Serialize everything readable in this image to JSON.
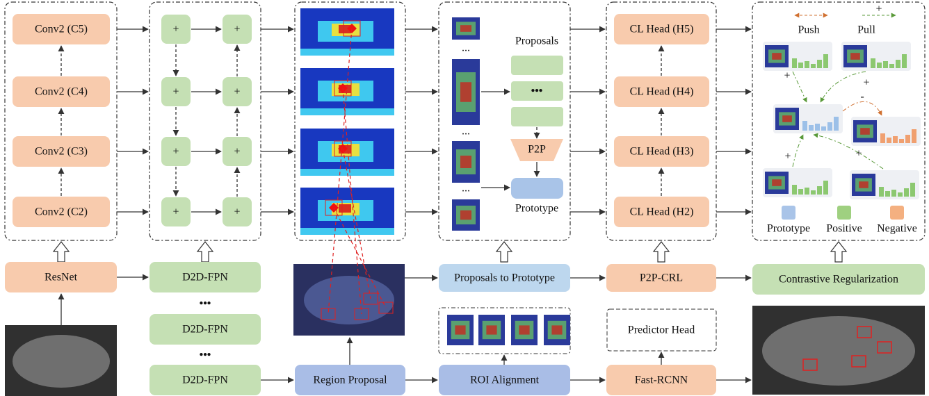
{
  "backbone": {
    "convs": [
      "Conv2 (C5)",
      "Conv2 (C4)",
      "Conv2 (C3)",
      "Conv2 (C2)"
    ],
    "resnet": "ResNet"
  },
  "fpn": {
    "plus": "+",
    "blocks": [
      "D2D-FPN",
      "D2D-FPN",
      "D2D-FPN"
    ],
    "ellipsis": "•••"
  },
  "proposals": {
    "title": "Proposals",
    "ellipsis": "...",
    "dots": "•••",
    "p2p": "P2P",
    "prototype": "Prototype"
  },
  "heads": [
    "CL Head (H5)",
    "CL Head (H4)",
    "CL Head (H3)",
    "CL Head (H2)"
  ],
  "contrastive": {
    "push": "Push",
    "pull": "Pull",
    "plus": "+",
    "minus": "-",
    "legend": [
      "Prototype",
      "Positive",
      "Negative"
    ]
  },
  "pipeline": {
    "proposals_to_prototype": "Proposals to Prototype",
    "p2p_crl": "P2P-CRL",
    "contrastive_regularization": "Contrastive Regularization",
    "region_proposal": "Region Proposal",
    "roi_alignment": "ROI Alignment",
    "predictor_head": "Predictor Head",
    "fast_rcnn": "Fast-RCNN"
  }
}
